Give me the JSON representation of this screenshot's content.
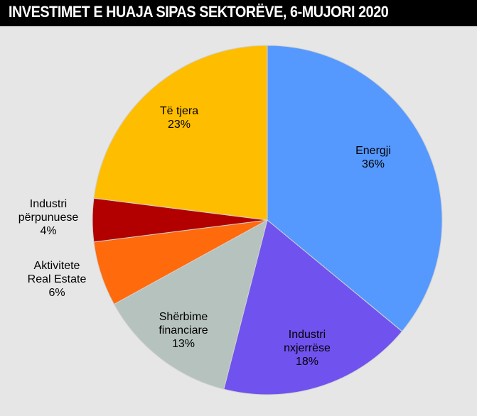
{
  "header": {
    "title": "INVESTIMET E HUAJA SIPAS SEKTORËVE, 6-MUJORI 2020"
  },
  "chart_data": {
    "type": "pie",
    "title": "INVESTIMET E HUAJA SIPAS SEKTORËVE, 6-MUJORI 2020",
    "slices": [
      {
        "label_lines": [
          "Energji"
        ],
        "value_text": "36%",
        "value": 36,
        "color": "#5599ff"
      },
      {
        "label_lines": [
          "Industri",
          "nxjerrëse"
        ],
        "value_text": "18%",
        "value": 18,
        "color": "#7052ee"
      },
      {
        "label_lines": [
          "Shërbime",
          "financiare"
        ],
        "value_text": "13%",
        "value": 13,
        "color": "#b6c2bd"
      },
      {
        "label_lines": [
          "Aktivitete",
          "Real Estate"
        ],
        "value_text": "6%",
        "value": 6,
        "color": "#ff6a0c"
      },
      {
        "label_lines": [
          "Industri",
          "përpunuese"
        ],
        "value_text": "4%",
        "value": 4,
        "color": "#b20000"
      },
      {
        "label_lines": [
          "Të tjera"
        ],
        "value_text": "23%",
        "value": 23,
        "color": "#ffbd00"
      }
    ]
  }
}
